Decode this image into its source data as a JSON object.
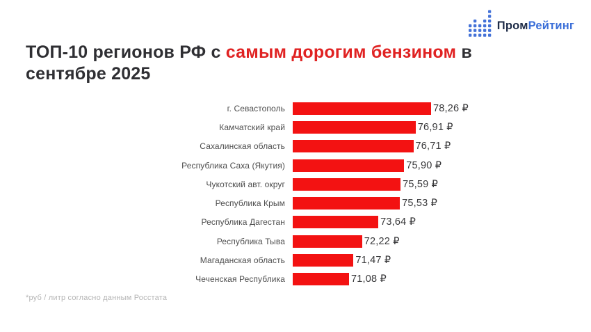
{
  "logo": {
    "icon_name": "dotted-bar-chart-icon",
    "icon_columns": [
      3,
      4,
      3,
      4,
      6
    ],
    "icon_color": "#4472d8",
    "text_primary": "Пром",
    "text_secondary": "Рейтинг",
    "text_primary_color": "#1d2b47",
    "text_secondary_color": "#3a6ed8"
  },
  "title": {
    "prefix": "ТОП-10 регионов РФ с ",
    "highlight": "самым дорогим бензином",
    "suffix": " в",
    "line2": "сентябре 2025",
    "text_color": "#2f2f33",
    "highlight_color": "#e02222"
  },
  "chart_data": {
    "type": "bar",
    "orientation": "horizontal",
    "title": "ТОП-10 регионов РФ с самым дорогим бензином в сентябре 2025",
    "categories": [
      "г. Севастополь",
      "Камчатский край",
      "Сахалинская область",
      "Республика Саха (Якутия)",
      "Чукотский авт. округ",
      "Республика Крым",
      "Республика Дагестан",
      "Республика Тыва",
      "Магаданская область",
      "Чеченская Республика"
    ],
    "values": [
      78.26,
      76.91,
      76.71,
      75.9,
      75.59,
      75.53,
      73.64,
      72.22,
      71.47,
      71.08
    ],
    "value_labels": [
      "78,26 ₽",
      "76,91 ₽",
      "76,71 ₽",
      "75,90 ₽",
      "75,59 ₽",
      "75,53 ₽",
      "73,64 ₽",
      "72,22 ₽",
      "71,47 ₽",
      "71,08 ₽"
    ],
    "unit": "руб / литр",
    "bar_color": "#f31212",
    "xlim_effective": [
      66.15,
      78.26
    ],
    "grid": false,
    "legend": false
  },
  "footnote": {
    "text": "*руб / литр согласно данным Росстата",
    "color": "#b5b5b5"
  }
}
